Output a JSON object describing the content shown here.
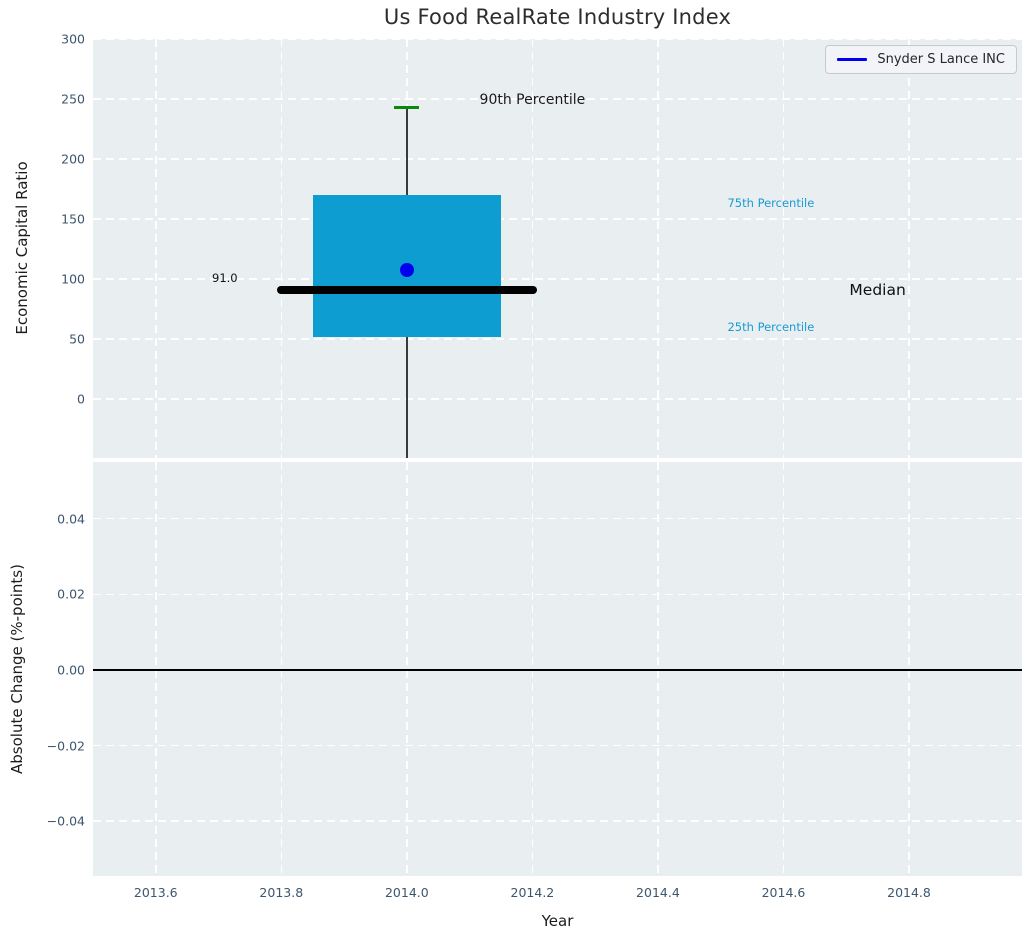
{
  "chart_data": [
    {
      "type": "boxplot",
      "title": "Us Food RealRate Industry Index",
      "ylabel": "Economic Capital Ratio",
      "xlim": [
        2013.5,
        2014.98
      ],
      "ylim": [
        -49,
        300
      ],
      "xticks": [
        2013.6,
        2013.8,
        2014.0,
        2014.2,
        2014.4,
        2014.6,
        2014.8
      ],
      "yticks": [
        0,
        50,
        100,
        150,
        200,
        250,
        300
      ],
      "ytick_labels": [
        "0",
        "50",
        "100",
        "150",
        "200",
        "250",
        "300"
      ],
      "grid": true,
      "legend_position": "upper right",
      "legend": [
        {
          "label": "Snyder S Lance INC",
          "color": "#0000f0"
        }
      ],
      "box": {
        "center_x": 2014.0,
        "box_left": 2013.85,
        "box_right": 2014.15,
        "q1": 52,
        "q3": 170,
        "median": 91.0,
        "p90": 243,
        "median_line_left": 2013.8,
        "median_line_right": 2014.2,
        "cap_halfwidth": 0.02,
        "whisker_clipped_below": true,
        "company_point": {
          "x": 2014.0,
          "y": 108
        }
      },
      "annotations": [
        {
          "text": "90th Percentile",
          "x": 2014.2,
          "y": 249,
          "color": "#1a1a1a",
          "font_size": 14
        },
        {
          "text": "75th Percentile",
          "x": 2014.58,
          "y": 163,
          "color": "#179bd5",
          "font_size": 11.5
        },
        {
          "text": "Median",
          "x": 2014.75,
          "y": 91,
          "color": "#111111",
          "font_size": 15.5
        },
        {
          "text": "25th Percentile",
          "x": 2014.58,
          "y": 60,
          "color": "#179bd5",
          "font_size": 11.5
        },
        {
          "text": "91.0",
          "x": 2013.71,
          "y": 101,
          "color": "#111111",
          "font_size": 11.5
        }
      ],
      "colors": {
        "box_fill": "#0d9dd1",
        "median_line": "#000000",
        "whisker": "#3a3a3a",
        "p90_cap": "#0a8a0a",
        "company_marker": "#0000f0",
        "axes_background": "#e9eef0",
        "grid": "#ffffff",
        "tick_label": "#3d566e"
      }
    },
    {
      "type": "line",
      "ylabel": "Absolute Change (%-points)",
      "xlabel": "Year",
      "xlim": [
        2013.5,
        2014.98
      ],
      "ylim": [
        -0.0545,
        0.055
      ],
      "xticks": [
        2013.6,
        2013.8,
        2014.0,
        2014.2,
        2014.4,
        2014.6,
        2014.8
      ],
      "xtick_labels": [
        "2013.6",
        "2013.8",
        "2014.0",
        "2014.2",
        "2014.4",
        "2014.6",
        "2014.8"
      ],
      "yticks": [
        0.04,
        0.02,
        0.0,
        -0.02,
        -0.04
      ],
      "ytick_labels": [
        "0.04",
        "0.02",
        "0.00",
        "−0.02",
        "−0.04"
      ],
      "grid": true,
      "series": [
        {
          "name": "Snyder S Lance INC",
          "style": "horizontal-line",
          "y": 0.0,
          "color": "#000000"
        }
      ]
    }
  ]
}
